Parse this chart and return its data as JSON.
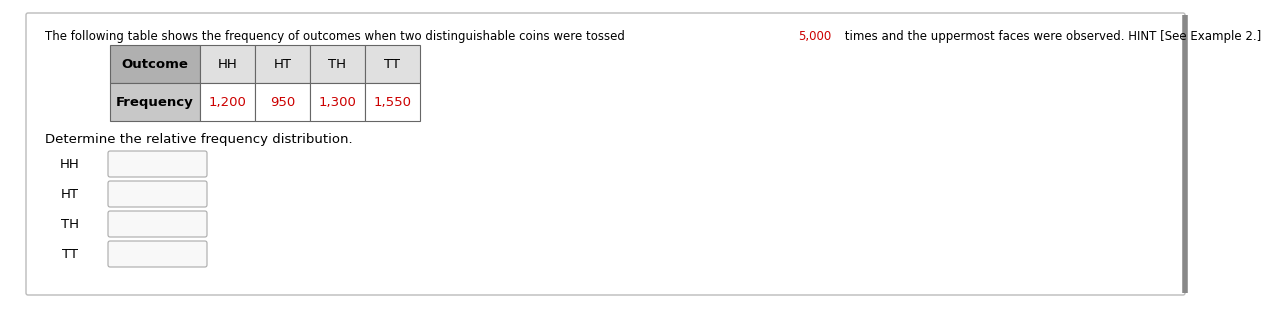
{
  "title_text1": "The following table shows the frequency of outcomes when two distinguishable coins were tossed ",
  "title_highlight": "5,000",
  "title_text2": " times and the uppermost faces were observed. HINT [See Example 2.]",
  "title_color": "#000000",
  "highlight_color": "#cc0000",
  "table_outcomes": [
    "Outcome",
    "HH",
    "HT",
    "TH",
    "TT"
  ],
  "table_frequencies": [
    "Frequency",
    "1,200",
    "950",
    "1,300",
    "1,550"
  ],
  "freq_color": "#cc0000",
  "determine_text": "Determine the relative frequency distribution.",
  "input_labels": [
    "HH",
    "HT",
    "TH",
    "TT"
  ],
  "background_color": "#ffffff",
  "outer_border_color": "#bbbbbb",
  "right_bar_color": "#888888",
  "table_header_bg": "#b0b0b0",
  "table_freq_bg": "#c8c8c8",
  "table_data_bg": "#ffffff",
  "table_border_color": "#666666",
  "input_box_bg": "#f8f8f8",
  "input_box_border": "#aaaaaa",
  "font_size_title": 8.5,
  "font_size_table": 9.5,
  "font_size_labels": 9.5
}
